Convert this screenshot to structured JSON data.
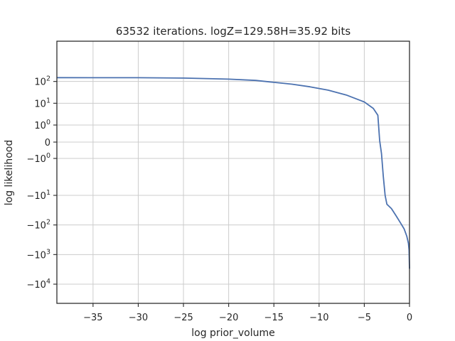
{
  "chart_data": {
    "type": "line",
    "title": "63532 iterations. logZ=129.58H=35.92 bits",
    "xlabel": "log prior_volume",
    "ylabel": "log likelihood",
    "xlim": [
      -39,
      0
    ],
    "y_scale": "symlog",
    "grid": true,
    "x_ticks": [
      {
        "value": -35,
        "label": "−35"
      },
      {
        "value": -30,
        "label": "−30"
      },
      {
        "value": -25,
        "label": "−25"
      },
      {
        "value": -20,
        "label": "−20"
      },
      {
        "value": -15,
        "label": "−15"
      },
      {
        "value": -10,
        "label": "−10"
      },
      {
        "value": -5,
        "label": "−5"
      },
      {
        "value": 0,
        "label": "0"
      }
    ],
    "y_ticks": [
      {
        "value": 100,
        "label": "10",
        "exp": "2"
      },
      {
        "value": 10,
        "label": "10",
        "exp": "1"
      },
      {
        "value": 1,
        "label": "10",
        "exp": "0"
      },
      {
        "value": 0,
        "label": "0",
        "exp": ""
      },
      {
        "value": -1,
        "label": "−10",
        "exp": "0"
      },
      {
        "value": -10,
        "label": "−10",
        "exp": "1"
      },
      {
        "value": -100,
        "label": "−10",
        "exp": "2"
      },
      {
        "value": -1000,
        "label": "−10",
        "exp": "3"
      },
      {
        "value": -10000,
        "label": "−10",
        "exp": "4"
      }
    ],
    "series": [
      {
        "color": "#4c72b0",
        "x": [
          -39,
          -30,
          -25,
          -20,
          -17,
          -15,
          -13,
          -11,
          -9,
          -7,
          -5,
          -4,
          -3.5,
          -3.3,
          -3.1,
          -2.9,
          -2.7,
          -2.5,
          -2.0,
          -1.5,
          -1.0,
          -0.6,
          -0.3,
          -0.12,
          -0.05,
          0
        ],
        "y": [
          150,
          148,
          143,
          128,
          112,
          91,
          75,
          57,
          40,
          24,
          11.5,
          5.8,
          2.8,
          0.1,
          -0.7,
          -3,
          -10,
          -20,
          -28,
          -48,
          -85,
          -135,
          -240,
          -420,
          -700,
          -3000
        ]
      }
    ]
  }
}
